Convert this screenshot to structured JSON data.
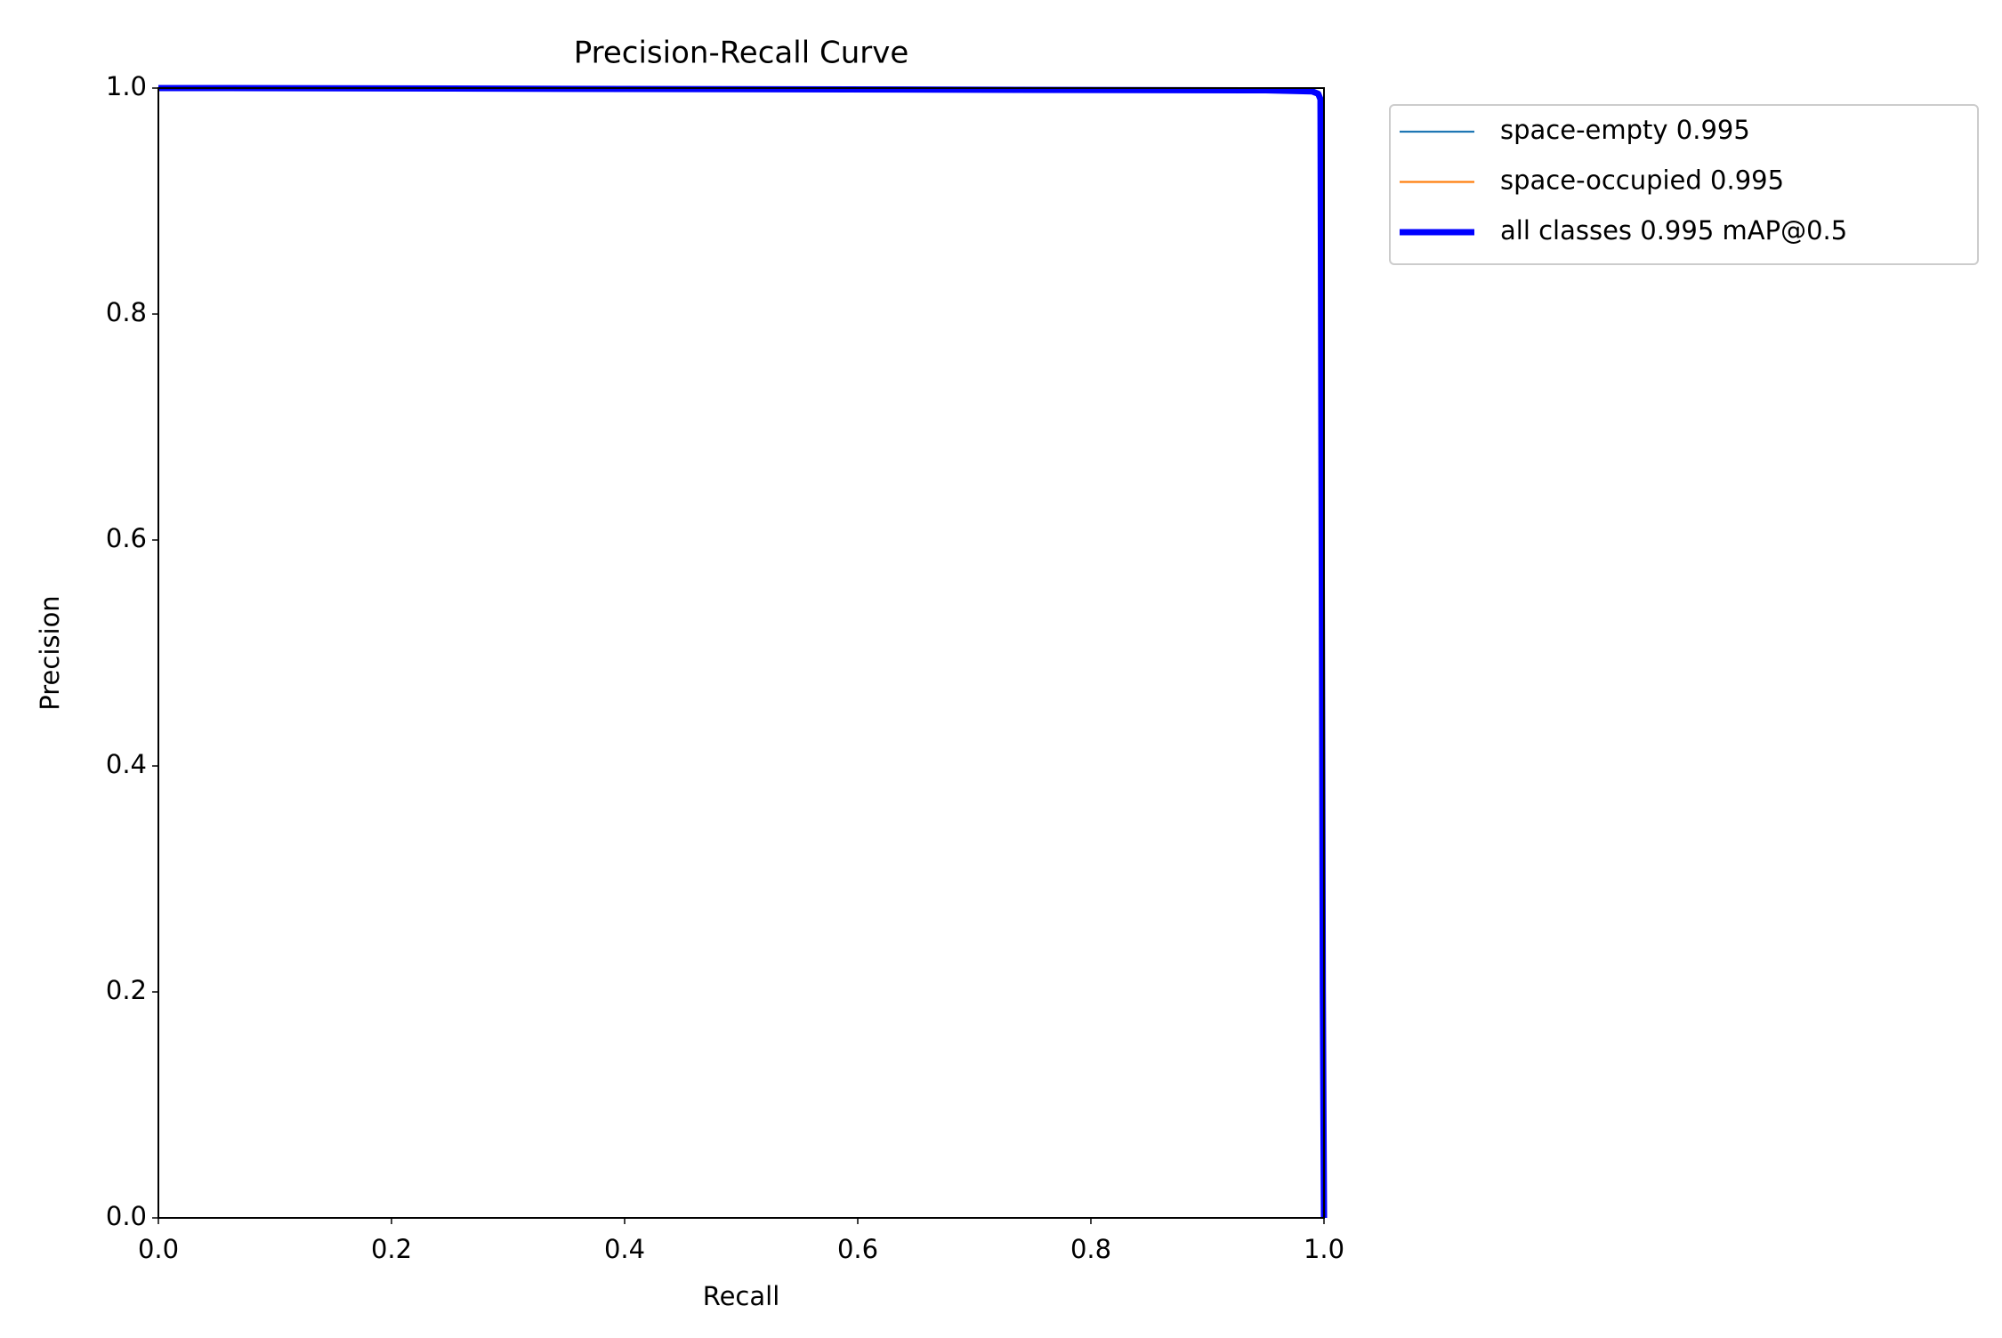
{
  "chart_data": {
    "type": "line",
    "title": "Precision-Recall Curve",
    "x_label": "Recall",
    "y_label": "Precision",
    "x": [
      0,
      0.06,
      0.5,
      0.95,
      0.99,
      0.995,
      0.997,
      0.998,
      0.999,
      1.0
    ],
    "series": [
      {
        "name": "space-empty 0.995",
        "color": "#1f77b4",
        "values": [
          1,
          1,
          0.999,
          0.998,
          0.997,
          0.995,
          0.99,
          0.6,
          0.2,
          0
        ]
      },
      {
        "name": "space-occupied 0.995",
        "color": "#ff7f0e",
        "values": [
          1,
          1,
          0.999,
          0.998,
          0.997,
          0.995,
          0.99,
          0.6,
          0.2,
          0
        ]
      },
      {
        "name": "all classes 0.995 mAP@0.5",
        "color": "#0000ff",
        "values": [
          1,
          1,
          0.999,
          0.998,
          0.997,
          0.995,
          0.99,
          0.6,
          0.2,
          0
        ]
      }
    ],
    "xlim": [
      0,
      1
    ],
    "ylim": [
      0,
      1
    ],
    "xticks": [
      {
        "value": 0,
        "label": "0.0"
      },
      0.2,
      0.4,
      0.6,
      0.8,
      {
        "value": 1,
        "label": "1.0"
      }
    ],
    "yticks": [
      {
        "value": 0,
        "label": "0.0"
      },
      0.2,
      0.4,
      0.6,
      0.8,
      {
        "value": 1,
        "label": "1.0"
      }
    ],
    "grid": false,
    "legend": "outside-upper-right"
  }
}
